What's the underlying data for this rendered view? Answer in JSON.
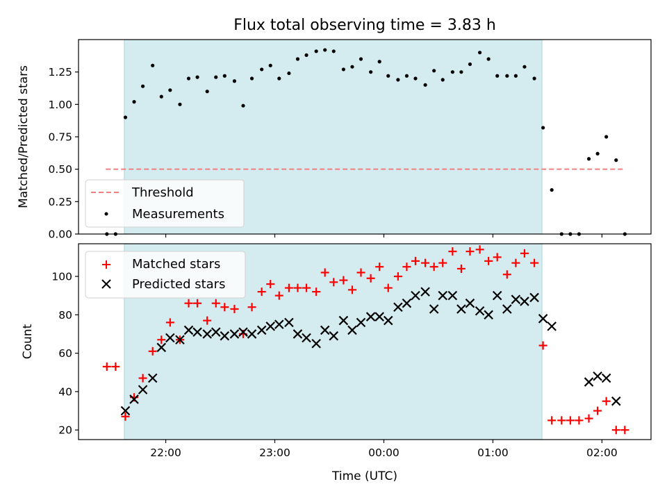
{
  "chart_data": [
    {
      "type": "scatter",
      "panel": "top",
      "title": "Flux total observing time = 3.83 h",
      "ylabel": "Matched/Predicted stars",
      "xlabel": "",
      "xlim": [
        -2.8,
        2.45
      ],
      "ylim": [
        0,
        1.5
      ],
      "yticks": [
        0.0,
        0.25,
        0.5,
        0.75,
        1.0,
        1.25
      ],
      "ytick_labels": [
        "0.00",
        "0.25",
        "0.50",
        "0.75",
        "1.00",
        "1.25"
      ],
      "xticks": [
        -2,
        -1,
        0,
        1,
        2
      ],
      "grid": false,
      "legend_placement": "lower-left",
      "shade": {
        "x0": -2.38,
        "x1": 1.45,
        "color": "#d4ebf0"
      },
      "threshold": {
        "name": "Threshold",
        "y": 0.5,
        "x0": -2.55,
        "x1": 2.2,
        "color": "#f08080"
      },
      "series": [
        {
          "name": "Measurements",
          "color": "#000000",
          "marker": "dot",
          "x": [
            -2.54,
            -2.46,
            -2.37,
            -2.29,
            -2.21,
            -2.12,
            -2.04,
            -1.96,
            -1.87,
            -1.79,
            -1.71,
            -1.62,
            -1.54,
            -1.46,
            -1.37,
            -1.29,
            -1.21,
            -1.12,
            -1.04,
            -0.96,
            -0.87,
            -0.79,
            -0.71,
            -0.62,
            -0.54,
            -0.46,
            -0.37,
            -0.29,
            -0.21,
            -0.12,
            -0.04,
            0.04,
            0.13,
            0.21,
            0.29,
            0.38,
            0.46,
            0.54,
            0.63,
            0.71,
            0.79,
            0.88,
            0.96,
            1.04,
            1.13,
            1.21,
            1.29,
            1.38,
            1.46,
            1.54,
            1.63,
            1.71,
            1.79,
            1.88,
            1.96,
            2.04,
            2.13,
            2.21
          ],
          "y": [
            0.0,
            0.0,
            0.9,
            1.02,
            1.14,
            1.3,
            1.06,
            1.11,
            1.0,
            1.2,
            1.21,
            1.1,
            1.21,
            1.22,
            1.18,
            0.99,
            1.2,
            1.27,
            1.3,
            1.2,
            1.24,
            1.35,
            1.38,
            1.41,
            1.42,
            1.41,
            1.27,
            1.29,
            1.35,
            1.25,
            1.33,
            1.22,
            1.19,
            1.22,
            1.2,
            1.15,
            1.26,
            1.19,
            1.25,
            1.25,
            1.31,
            1.4,
            1.35,
            1.22,
            1.22,
            1.22,
            1.29,
            1.2,
            0.82,
            0.34,
            0.0,
            0.0,
            0.0,
            0.58,
            0.62,
            0.75,
            0.57,
            0.0
          ]
        }
      ]
    },
    {
      "type": "scatter",
      "panel": "bottom",
      "title": "",
      "xlabel": "Time (UTC)",
      "ylabel": "Count",
      "xlim": [
        -2.8,
        2.45
      ],
      "ylim": [
        15,
        117
      ],
      "yticks": [
        20,
        40,
        60,
        80,
        100
      ],
      "xticks": [
        -2,
        -1,
        0,
        1,
        2
      ],
      "xtick_labels": [
        "22:00",
        "23:00",
        "00:00",
        "01:00",
        "02:00"
      ],
      "grid": false,
      "legend_placement": "upper-left",
      "shade": {
        "x0": -2.38,
        "x1": 1.45,
        "color": "#d4ebf0"
      },
      "series": [
        {
          "name": "Matched stars",
          "color": "#ff0000",
          "marker": "plus",
          "x": [
            -2.54,
            -2.46,
            -2.37,
            -2.29,
            -2.21,
            -2.12,
            -2.04,
            -1.96,
            -1.87,
            -1.79,
            -1.71,
            -1.62,
            -1.54,
            -1.46,
            -1.37,
            -1.29,
            -1.21,
            -1.12,
            -1.04,
            -0.96,
            -0.87,
            -0.79,
            -0.71,
            -0.62,
            -0.54,
            -0.46,
            -0.37,
            -0.29,
            -0.21,
            -0.12,
            -0.04,
            0.04,
            0.13,
            0.21,
            0.29,
            0.38,
            0.46,
            0.54,
            0.63,
            0.71,
            0.79,
            0.88,
            0.96,
            1.04,
            1.13,
            1.21,
            1.29,
            1.38,
            1.46,
            1.54,
            1.63,
            1.71,
            1.79,
            1.88,
            1.96,
            2.04,
            2.13,
            2.21
          ],
          "y": [
            53,
            53,
            27,
            37,
            47,
            61,
            67,
            76,
            67,
            86,
            86,
            77,
            86,
            84,
            83,
            70,
            84,
            92,
            96,
            90,
            94,
            94,
            94,
            92,
            102,
            97,
            98,
            93,
            102,
            99,
            105,
            94,
            100,
            105,
            108,
            107,
            105,
            107,
            113,
            104,
            113,
            114,
            108,
            110,
            101,
            107,
            112,
            107,
            64,
            25,
            25,
            25,
            25,
            26,
            30,
            35,
            20,
            20
          ]
        },
        {
          "name": "Predicted stars",
          "color": "#000000",
          "marker": "cross",
          "x": [
            -2.37,
            -2.29,
            -2.21,
            -2.12,
            -2.04,
            -1.96,
            -1.87,
            -1.79,
            -1.71,
            -1.62,
            -1.54,
            -1.46,
            -1.37,
            -1.29,
            -1.21,
            -1.12,
            -1.04,
            -0.96,
            -0.87,
            -0.79,
            -0.71,
            -0.62,
            -0.54,
            -0.46,
            -0.37,
            -0.29,
            -0.21,
            -0.12,
            -0.04,
            0.04,
            0.13,
            0.21,
            0.29,
            0.38,
            0.46,
            0.54,
            0.63,
            0.71,
            0.79,
            0.88,
            0.96,
            1.04,
            1.13,
            1.21,
            1.29,
            1.38,
            1.46,
            1.54,
            1.88,
            1.96,
            2.04,
            2.13
          ],
          "y": [
            30,
            36,
            41,
            47,
            63,
            68,
            67,
            72,
            71,
            70,
            71,
            69,
            70,
            71,
            70,
            72,
            74,
            75,
            76,
            70,
            68,
            65,
            72,
            69,
            77,
            72,
            76,
            79,
            79,
            77,
            84,
            86,
            90,
            92,
            83,
            90,
            90,
            83,
            86,
            82,
            80,
            90,
            83,
            88,
            87,
            89,
            78,
            74,
            45,
            48,
            47,
            35
          ]
        }
      ]
    }
  ]
}
